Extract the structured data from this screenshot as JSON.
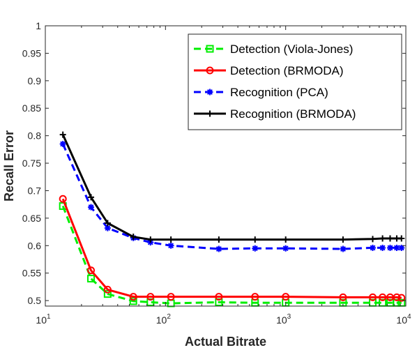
{
  "chart_data": {
    "type": "line",
    "xlabel": "Actual Bitrate",
    "ylabel": "Recall Error",
    "xscale": "log",
    "xlim": [
      10,
      10000
    ],
    "ylim": [
      0.49,
      1.0
    ],
    "x_tick_labels": [
      {
        "value": 10,
        "base": "10",
        "exp": "1"
      },
      {
        "value": 100,
        "base": "10",
        "exp": "2"
      },
      {
        "value": 1000,
        "base": "10",
        "exp": "3"
      },
      {
        "value": 10000,
        "base": "10",
        "exp": "4"
      }
    ],
    "y_ticks": [
      0.5,
      0.55,
      0.6,
      0.65,
      0.7,
      0.75,
      0.8,
      0.85,
      0.9,
      0.95,
      1
    ],
    "y_tick_labels": [
      "0.5",
      "0.55",
      "0.6",
      "0.65",
      "0.7",
      "0.75",
      "0.8",
      "0.85",
      "0.9",
      "0.95",
      "1"
    ],
    "grid": false,
    "legend_position": "top-right",
    "series": [
      {
        "name": "Detection (Viola-Jones)",
        "color": "#00ee00",
        "dash": "dashed",
        "marker": "square",
        "x": [
          14,
          24,
          33,
          54,
          75,
          111,
          278,
          556,
          1000,
          3000,
          5300,
          6400,
          7400,
          8400,
          9200
        ],
        "y": [
          0.672,
          0.54,
          0.512,
          0.499,
          0.497,
          0.495,
          0.497,
          0.496,
          0.496,
          0.496,
          0.496,
          0.496,
          0.496,
          0.496,
          0.496
        ]
      },
      {
        "name": "Detection (BRMODA)",
        "color": "#ff0000",
        "dash": "solid",
        "marker": "circle",
        "x": [
          14,
          24,
          33,
          54,
          75,
          111,
          278,
          556,
          1000,
          3000,
          5300,
          6400,
          7400,
          8400,
          9200
        ],
        "y": [
          0.685,
          0.555,
          0.52,
          0.507,
          0.507,
          0.507,
          0.507,
          0.507,
          0.507,
          0.506,
          0.506,
          0.506,
          0.506,
          0.506,
          0.505
        ]
      },
      {
        "name": "Recognition (PCA)",
        "color": "#0000ff",
        "dash": "dashed",
        "marker": "asterisk",
        "x": [
          14,
          24,
          33,
          54,
          75,
          111,
          278,
          556,
          1000,
          3000,
          5300,
          6400,
          7400,
          8400,
          9200
        ],
        "y": [
          0.785,
          0.67,
          0.632,
          0.614,
          0.606,
          0.6,
          0.594,
          0.595,
          0.595,
          0.594,
          0.596,
          0.596,
          0.596,
          0.596,
          0.596
        ]
      },
      {
        "name": "Recognition (BRMODA)",
        "color": "#000000",
        "dash": "solid",
        "marker": "plus",
        "x": [
          14,
          24,
          33,
          54,
          75,
          111,
          278,
          556,
          1000,
          3000,
          5300,
          6400,
          7400,
          8400,
          9200
        ],
        "y": [
          0.802,
          0.688,
          0.641,
          0.616,
          0.611,
          0.611,
          0.611,
          0.611,
          0.611,
          0.611,
          0.612,
          0.613,
          0.613,
          0.613,
          0.613
        ]
      }
    ]
  }
}
